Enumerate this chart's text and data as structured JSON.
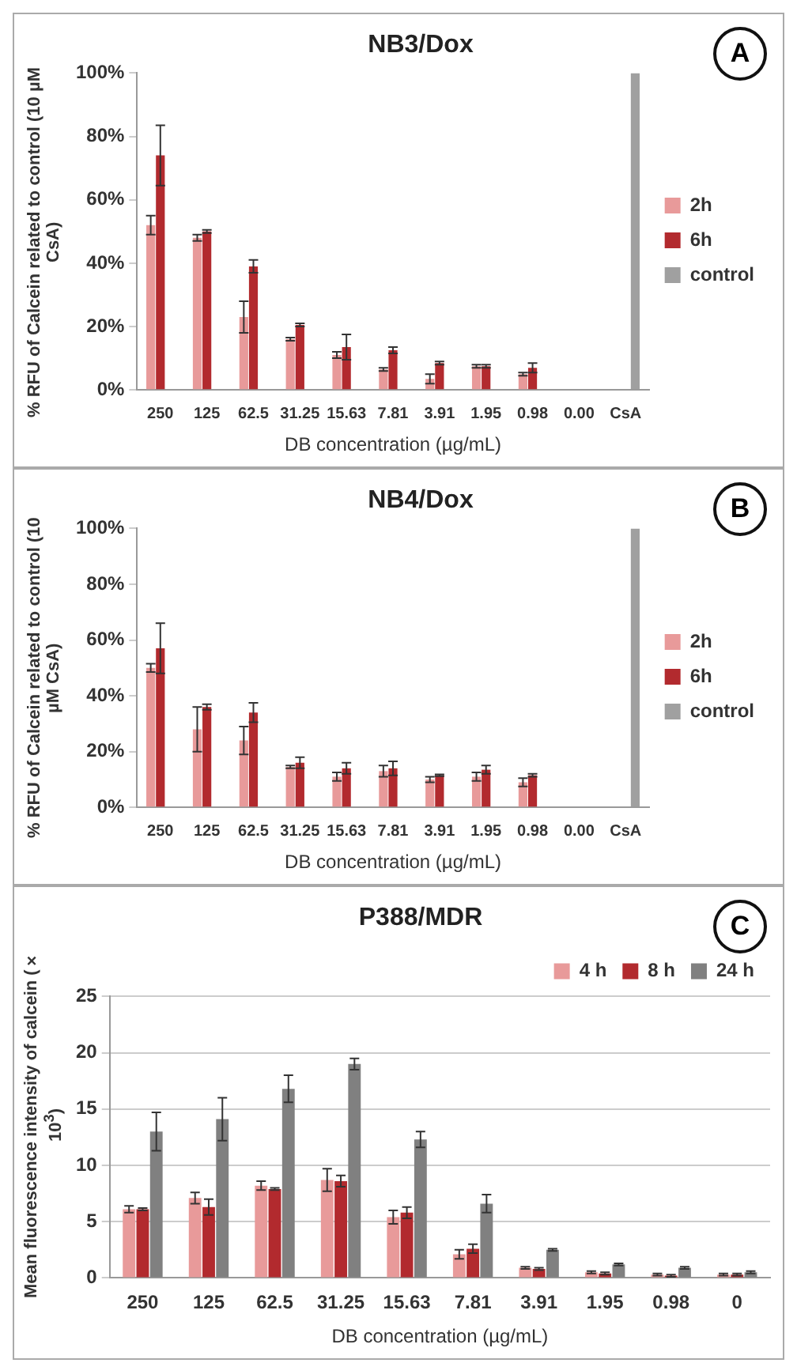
{
  "chart_data": [
    {
      "type": "bar",
      "title": "NB3/Dox",
      "xlabel": "DB concentration (µg/mL)",
      "ylabel": "% RFU of Calcein related to control (10 µM CsA)",
      "annotations": [
        "A"
      ],
      "categories": [
        "250",
        "125",
        "62.5",
        "31.25",
        "15.63",
        "7.81",
        "3.91",
        "1.95",
        "0.98",
        "0.00",
        "CsA"
      ],
      "series": [
        {
          "name": "2h",
          "color": "#e89a9a",
          "values": [
            52,
            48,
            23,
            16,
            11,
            6.5,
            3.5,
            7.5,
            5,
            null,
            null
          ],
          "errors": [
            3,
            1,
            5,
            0.5,
            1,
            0.5,
            1.5,
            0.5,
            0.5,
            null,
            null
          ]
        },
        {
          "name": "6h",
          "color": "#b22a2e",
          "values": [
            74,
            50,
            39,
            20.5,
            13.5,
            12.5,
            8.5,
            7.5,
            7,
            null,
            null
          ],
          "errors": [
            9.5,
            0.5,
            2,
            0.5,
            4,
            1,
            0.5,
            0.5,
            1.5,
            null,
            null
          ]
        },
        {
          "name": "control",
          "color": "#a0a0a0",
          "values": [
            null,
            null,
            null,
            null,
            null,
            null,
            null,
            null,
            null,
            null,
            100
          ]
        }
      ],
      "ylim": [
        0,
        100
      ],
      "yticks": [
        {
          "value": 0,
          "label": "0%"
        },
        {
          "value": 20,
          "label": "20%"
        },
        {
          "value": 40,
          "label": "40%"
        },
        {
          "value": 60,
          "label": "60%"
        },
        {
          "value": 80,
          "label": "80%"
        },
        {
          "value": 100,
          "label": "100%"
        }
      ],
      "grid": false,
      "legend": "right"
    },
    {
      "type": "bar",
      "title": "NB4/Dox",
      "xlabel": "DB concentration (µg/mL)",
      "ylabel": "% RFU of Calcein related to control (10 µM CsA)",
      "annotations": [
        "B"
      ],
      "categories": [
        "250",
        "125",
        "62.5",
        "31.25",
        "15.63",
        "7.81",
        "3.91",
        "1.95",
        "0.98",
        "0.00",
        "CsA"
      ],
      "series": [
        {
          "name": "2h",
          "color": "#e89a9a",
          "values": [
            50,
            28,
            24,
            14.5,
            11,
            13,
            10,
            11,
            9,
            null,
            null
          ],
          "errors": [
            1.5,
            8,
            5,
            0.5,
            1.5,
            2,
            1,
            1.5,
            1.5,
            null,
            null
          ]
        },
        {
          "name": "6h",
          "color": "#b22a2e",
          "values": [
            57,
            36,
            34,
            16,
            14,
            14,
            11.5,
            13.5,
            11.5,
            null,
            null
          ],
          "errors": [
            9,
            1,
            3.5,
            2,
            2,
            2.5,
            0.3,
            1.5,
            0.5,
            null,
            null
          ]
        },
        {
          "name": "control",
          "color": "#a0a0a0",
          "values": [
            null,
            null,
            null,
            null,
            null,
            null,
            null,
            null,
            null,
            null,
            100
          ]
        }
      ],
      "ylim": [
        0,
        100
      ],
      "yticks": [
        {
          "value": 0,
          "label": "0%"
        },
        {
          "value": 20,
          "label": "20%"
        },
        {
          "value": 40,
          "label": "40%"
        },
        {
          "value": 60,
          "label": "60%"
        },
        {
          "value": 80,
          "label": "80%"
        },
        {
          "value": 100,
          "label": "100%"
        }
      ],
      "grid": false,
      "legend": "right"
    },
    {
      "type": "bar",
      "title": "P388/MDR",
      "xlabel": "DB concentration (µg/mL)",
      "ylabel": "Mean fluorescence intensity of calcein (× 10$^{3}$)",
      "annotations": [
        "C"
      ],
      "categories": [
        "250",
        "125",
        "62.5",
        "31.25",
        "15.63",
        "7.81",
        "3.91",
        "1.95",
        "0.98",
        "0"
      ],
      "series": [
        {
          "name": "4 h",
          "color": "#e89a9a",
          "values": [
            6.1,
            7.1,
            8.2,
            8.7,
            5.4,
            2.1,
            0.9,
            0.5,
            0.3,
            0.3
          ],
          "errors": [
            0.3,
            0.5,
            0.4,
            1,
            0.6,
            0.4,
            0.1,
            0.1,
            0.1,
            0.1
          ]
        },
        {
          "name": "8 h",
          "color": "#b22a2e",
          "values": [
            6.1,
            6.3,
            7.9,
            8.6,
            5.8,
            2.6,
            0.8,
            0.4,
            0.2,
            0.3
          ],
          "errors": [
            0.1,
            0.7,
            0.1,
            0.5,
            0.5,
            0.4,
            0.1,
            0.1,
            0.1,
            0.1
          ]
        },
        {
          "name": "24 h",
          "color": "#808080",
          "values": [
            13,
            14.1,
            16.8,
            19,
            12.3,
            6.6,
            2.5,
            1.2,
            0.9,
            0.5
          ],
          "errors": [
            1.7,
            1.9,
            1.2,
            0.5,
            0.7,
            0.8,
            0.1,
            0.1,
            0.1,
            0.1
          ]
        }
      ],
      "ylim": [
        0,
        25
      ],
      "yticks": [
        0,
        5,
        10,
        15,
        20,
        25
      ],
      "grid": "y",
      "legend": "top right"
    }
  ]
}
